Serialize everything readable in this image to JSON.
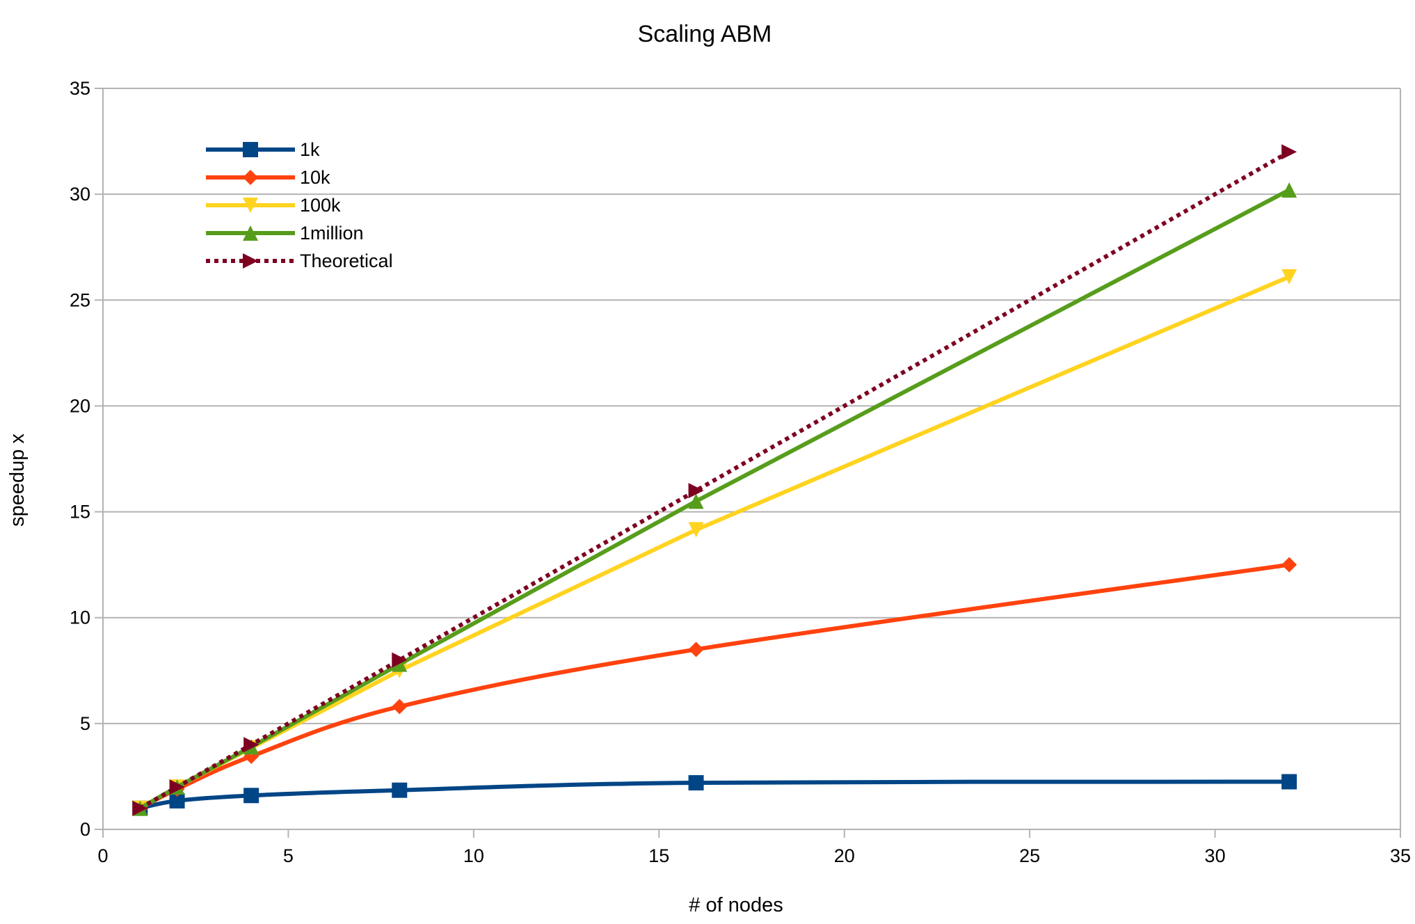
{
  "chart_data": {
    "type": "line",
    "title": "Scaling ABM",
    "xlabel": "# of nodes",
    "ylabel": "speedup x",
    "xlim": [
      0,
      35
    ],
    "ylim": [
      0,
      35
    ],
    "xticks": [
      0,
      5,
      10,
      15,
      20,
      25,
      30,
      35
    ],
    "yticks": [
      0,
      5,
      10,
      15,
      20,
      25,
      30,
      35
    ],
    "grid": "horizontal",
    "legend_position": "top-left",
    "x": [
      1,
      2,
      4,
      8,
      16,
      32
    ],
    "series": [
      {
        "name": "1k",
        "values": [
          1,
          1.35,
          1.6,
          1.85,
          2.2,
          2.25
        ],
        "color": "#004586",
        "marker": "square",
        "style": "solid",
        "smooth": true
      },
      {
        "name": "10k",
        "values": [
          1,
          1.9,
          3.45,
          5.8,
          8.5,
          12.5
        ],
        "color": "#ff420e",
        "marker": "diamond",
        "style": "solid",
        "smooth": true
      },
      {
        "name": "100k",
        "values": [
          1,
          2,
          3.85,
          7.5,
          14.15,
          26.1
        ],
        "color": "#ffd320",
        "marker": "triangle-down",
        "style": "solid",
        "smooth": false
      },
      {
        "name": "1million",
        "values": [
          1,
          2,
          3.9,
          7.8,
          15.5,
          30.2
        ],
        "color": "#579d1c",
        "marker": "triangle-up",
        "style": "solid",
        "smooth": false
      },
      {
        "name": "Theoretical",
        "values": [
          1,
          2,
          4,
          8,
          16,
          32
        ],
        "color": "#7e0021",
        "marker": "triangle-right",
        "style": "dotted",
        "smooth": false
      }
    ]
  }
}
